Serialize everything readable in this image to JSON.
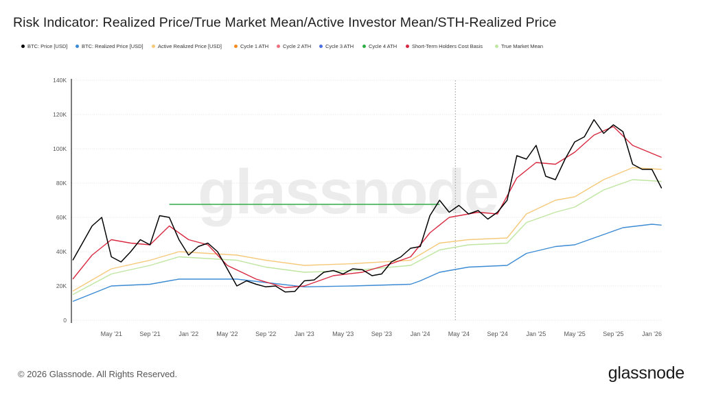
{
  "title": "Risk Indicator: Realized Price/True Market Mean/Active Investor Mean/STH-Realized Price",
  "footer": "© 2026 Glassnode. All Rights Reserved.",
  "logo_text": "glassnode",
  "watermark": "glassnode",
  "legend": [
    {
      "label": "BTC: Price [USD]",
      "color": "#000000"
    },
    {
      "label": "BTC: Realized Price [USD]",
      "color": "#3b8ad4"
    },
    {
      "label": "Active Realized Price [USD]",
      "color": "#f6c97a"
    },
    {
      "label": "Cycle 1 ATH",
      "color": "#f58a1f"
    },
    {
      "label": "Cycle 2 ATH",
      "color": "#ee6f7c"
    },
    {
      "label": "Cycle 3 ATH",
      "color": "#4a6fe3"
    },
    {
      "label": "Cycle 4 ATH",
      "color": "#2fae45"
    },
    {
      "label": "Short-Term Holders Cost Basis",
      "color": "#d9283f"
    },
    {
      "label": "True Market Mean",
      "color": "#bfe6a0"
    }
  ],
  "chart_data": {
    "type": "line",
    "ylim": [
      0,
      140000
    ],
    "xlim": [
      "2021-01",
      "2026-02"
    ],
    "y_ticks": [
      "0",
      "20K",
      "40K",
      "60K",
      "80K",
      "100K",
      "120K",
      "140K"
    ],
    "y_tick_values": [
      0,
      20000,
      40000,
      60000,
      80000,
      100000,
      120000,
      140000
    ],
    "x_ticks": [
      "May '21",
      "Sep '21",
      "Jan '22",
      "May '22",
      "Sep '22",
      "Jan '23",
      "May '23",
      "Sep '23",
      "Jan '24",
      "May '24",
      "Sep '24",
      "Jan '25",
      "May '25",
      "Sep '25",
      "Jan '26"
    ],
    "x_tick_dates": [
      "2021-05",
      "2021-09",
      "2022-01",
      "2022-05",
      "2022-09",
      "2023-01",
      "2023-05",
      "2023-09",
      "2024-01",
      "2024-05",
      "2024-09",
      "2025-01",
      "2025-05",
      "2025-09",
      "2026-01"
    ],
    "grid": true,
    "legend_position": "top",
    "vertical_marker_date": "2024-04-20",
    "series": [
      {
        "name": "Active Realized Price [USD]",
        "color": "#f6c97a",
        "points": [
          [
            "2021-01",
            17000
          ],
          [
            "2021-05",
            30000
          ],
          [
            "2021-09",
            35000
          ],
          [
            "2021-12",
            40000
          ],
          [
            "2022-06",
            38000
          ],
          [
            "2022-09",
            35000
          ],
          [
            "2023-01",
            32000
          ],
          [
            "2023-06",
            33000
          ],
          [
            "2023-12",
            35000
          ],
          [
            "2024-03",
            45000
          ],
          [
            "2024-06",
            47000
          ],
          [
            "2024-10",
            48000
          ],
          [
            "2024-12",
            62000
          ],
          [
            "2025-03",
            70000
          ],
          [
            "2025-05",
            72000
          ],
          [
            "2025-08",
            82000
          ],
          [
            "2025-11",
            89000
          ],
          [
            "2026-02",
            88000
          ]
        ]
      },
      {
        "name": "True Market Mean",
        "color": "#bfe6a0",
        "points": [
          [
            "2021-01",
            15000
          ],
          [
            "2021-05",
            27000
          ],
          [
            "2021-09",
            32000
          ],
          [
            "2021-12",
            37000
          ],
          [
            "2022-06",
            35000
          ],
          [
            "2022-09",
            31000
          ],
          [
            "2023-01",
            28000
          ],
          [
            "2023-06",
            29000
          ],
          [
            "2023-12",
            32000
          ],
          [
            "2024-03",
            41000
          ],
          [
            "2024-06",
            44000
          ],
          [
            "2024-10",
            45000
          ],
          [
            "2024-12",
            57000
          ],
          [
            "2025-03",
            63000
          ],
          [
            "2025-05",
            66000
          ],
          [
            "2025-08",
            76000
          ],
          [
            "2025-11",
            82000
          ],
          [
            "2026-02",
            81000
          ]
        ]
      },
      {
        "name": "BTC: Realized Price [USD]",
        "color": "#3b8ad4",
        "points": [
          [
            "2021-01",
            11000
          ],
          [
            "2021-05",
            20000
          ],
          [
            "2021-09",
            21000
          ],
          [
            "2021-12",
            24000
          ],
          [
            "2022-06",
            24000
          ],
          [
            "2022-09",
            22000
          ],
          [
            "2023-01",
            19500
          ],
          [
            "2023-06",
            20000
          ],
          [
            "2023-12",
            21000
          ],
          [
            "2024-01",
            23000
          ],
          [
            "2024-03",
            28000
          ],
          [
            "2024-06",
            31000
          ],
          [
            "2024-10",
            32000
          ],
          [
            "2024-12",
            39000
          ],
          [
            "2025-03",
            43000
          ],
          [
            "2025-05",
            44000
          ],
          [
            "2025-08",
            50000
          ],
          [
            "2025-10",
            54000
          ],
          [
            "2026-01",
            56000
          ],
          [
            "2026-02",
            55500
          ]
        ]
      },
      {
        "name": "Short-Term Holders Cost Basis",
        "color": "#d9283f",
        "points": [
          [
            "2021-01",
            24000
          ],
          [
            "2021-03",
            38000
          ],
          [
            "2021-05",
            47000
          ],
          [
            "2021-07",
            45000
          ],
          [
            "2021-09",
            44000
          ],
          [
            "2021-11",
            55000
          ],
          [
            "2022-01",
            47000
          ],
          [
            "2022-03",
            44000
          ],
          [
            "2022-05",
            32000
          ],
          [
            "2022-08",
            24000
          ],
          [
            "2022-11",
            19000
          ],
          [
            "2023-01",
            20000
          ],
          [
            "2023-04",
            26000
          ],
          [
            "2023-07",
            28000
          ],
          [
            "2023-10",
            33000
          ],
          [
            "2023-12",
            37000
          ],
          [
            "2024-02",
            51000
          ],
          [
            "2024-04",
            60000
          ],
          [
            "2024-07",
            63000
          ],
          [
            "2024-09",
            62000
          ],
          [
            "2024-11",
            83000
          ],
          [
            "2025-01",
            92000
          ],
          [
            "2025-03",
            91000
          ],
          [
            "2025-05",
            98000
          ],
          [
            "2025-07",
            108000
          ],
          [
            "2025-09",
            113000
          ],
          [
            "2025-11",
            102000
          ],
          [
            "2026-02",
            95000
          ]
        ]
      },
      {
        "name": "Cycle 4 ATH",
        "color": "#2fae45",
        "points": [
          [
            "2021-11",
            67600
          ],
          [
            "2024-03",
            67600
          ]
        ]
      },
      {
        "name": "BTC: Price [USD]",
        "color": "#000000",
        "points": [
          [
            "2021-01",
            35000
          ],
          [
            "2021-02",
            45000
          ],
          [
            "2021-03",
            55000
          ],
          [
            "2021-04",
            60000
          ],
          [
            "2021-05",
            37000
          ],
          [
            "2021-06",
            34000
          ],
          [
            "2021-07",
            40000
          ],
          [
            "2021-08",
            47000
          ],
          [
            "2021-09",
            44000
          ],
          [
            "2021-10",
            61000
          ],
          [
            "2021-11",
            60000
          ],
          [
            "2021-12",
            47000
          ],
          [
            "2022-01",
            38000
          ],
          [
            "2022-02",
            43000
          ],
          [
            "2022-03",
            45000
          ],
          [
            "2022-04",
            40000
          ],
          [
            "2022-05",
            30000
          ],
          [
            "2022-06",
            20000
          ],
          [
            "2022-07",
            23000
          ],
          [
            "2022-08",
            21000
          ],
          [
            "2022-09",
            19500
          ],
          [
            "2022-10",
            20000
          ],
          [
            "2022-11",
            16500
          ],
          [
            "2022-12",
            16800
          ],
          [
            "2023-01",
            23000
          ],
          [
            "2023-02",
            23500
          ],
          [
            "2023-03",
            28000
          ],
          [
            "2023-04",
            29000
          ],
          [
            "2023-05",
            27000
          ],
          [
            "2023-06",
            30000
          ],
          [
            "2023-07",
            29500
          ],
          [
            "2023-08",
            26000
          ],
          [
            "2023-09",
            27000
          ],
          [
            "2023-10",
            34000
          ],
          [
            "2023-11",
            37000
          ],
          [
            "2023-12",
            42000
          ],
          [
            "2024-01",
            43000
          ],
          [
            "2024-02",
            61000
          ],
          [
            "2024-03",
            70000
          ],
          [
            "2024-04",
            63000
          ],
          [
            "2024-05",
            67000
          ],
          [
            "2024-06",
            62000
          ],
          [
            "2024-07",
            64000
          ],
          [
            "2024-08",
            59000
          ],
          [
            "2024-09",
            63000
          ],
          [
            "2024-10",
            70000
          ],
          [
            "2024-11",
            96000
          ],
          [
            "2024-12",
            94000
          ],
          [
            "2025-01",
            102000
          ],
          [
            "2025-02",
            84000
          ],
          [
            "2025-03",
            82000
          ],
          [
            "2025-04",
            94000
          ],
          [
            "2025-05",
            104000
          ],
          [
            "2025-06",
            107000
          ],
          [
            "2025-07",
            117000
          ],
          [
            "2025-08",
            109000
          ],
          [
            "2025-09",
            114000
          ],
          [
            "2025-10",
            110000
          ],
          [
            "2025-11",
            91000
          ],
          [
            "2025-12",
            88000
          ],
          [
            "2026-01",
            88000
          ],
          [
            "2026-02",
            77000
          ]
        ]
      }
    ]
  }
}
